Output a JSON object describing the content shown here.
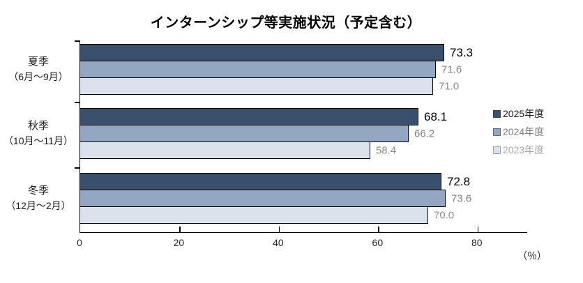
{
  "chart_data": {
    "type": "bar",
    "orientation": "horizontal",
    "title": "インターンシップ等実施状況（予定含む）",
    "unit_label": "（％）",
    "categories": [
      {
        "label": "夏季",
        "sublabel": "（6月〜9月）"
      },
      {
        "label": "秋季",
        "sublabel": "（10月〜11月）"
      },
      {
        "label": "冬季",
        "sublabel": "（12月〜2月）"
      }
    ],
    "series": [
      {
        "name": "2025年度",
        "values": [
          73.3,
          68.1,
          72.8
        ],
        "bar_color": "#3A516E",
        "legend_text_color": "#1a1a1a",
        "value_text_color": "#000000",
        "value_font_px": 17,
        "swatch_border_color": "#30405a"
      },
      {
        "name": "2024年度",
        "values": [
          71.6,
          66.2,
          73.6
        ],
        "bar_color": "#93A7C3",
        "legend_text_color": "#808080",
        "value_text_color": "#808080",
        "value_font_px": 15,
        "swatch_border_color": "#5a6b80"
      },
      {
        "name": "2023年度",
        "values": [
          71.0,
          58.4,
          70.0
        ],
        "bar_color": "#DCE2EC",
        "legend_text_color": "#A9A9A9",
        "value_text_color": "#8C8C8C",
        "value_font_px": 15,
        "swatch_border_color": "#9aa3ae"
      }
    ],
    "x_ticks": [
      0,
      20,
      40,
      60,
      80
    ],
    "xlim": [
      0,
      90
    ],
    "grid": false,
    "legend_position": "right",
    "axis_color": "#000000",
    "bar_border_color": "#000000"
  }
}
